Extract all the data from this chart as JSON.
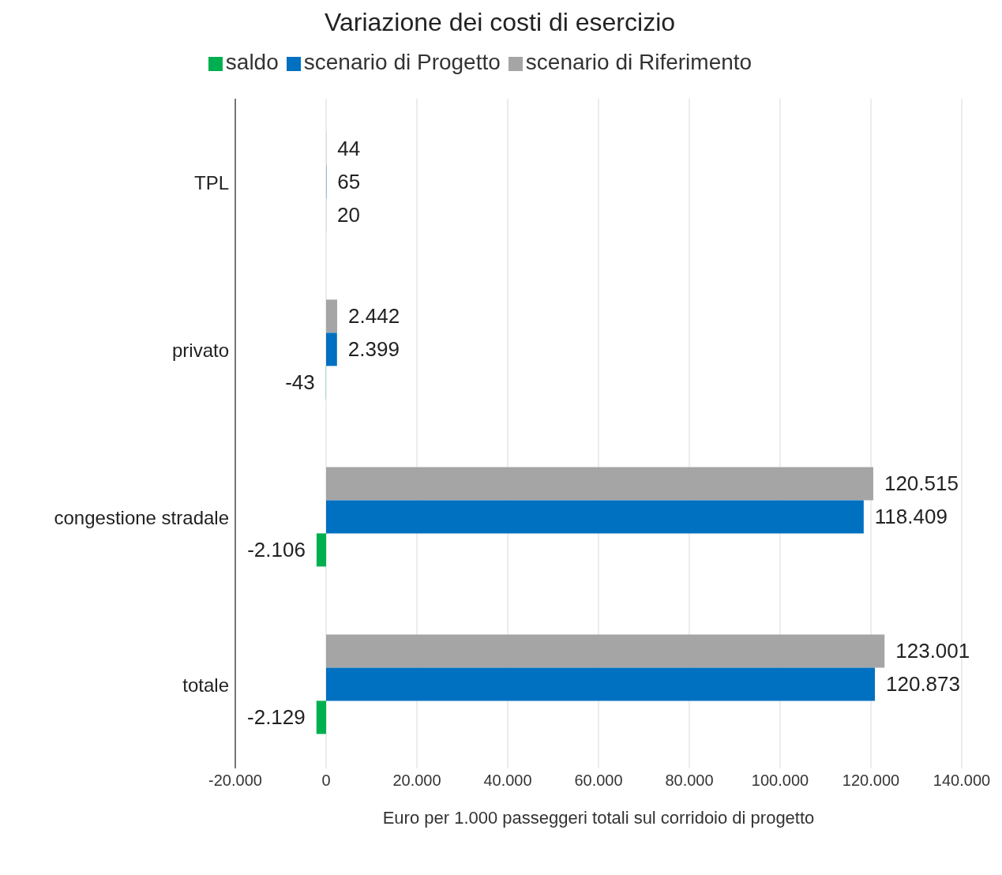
{
  "chart_data": {
    "type": "bar",
    "orientation": "horizontal",
    "title": "Variazione dei costi di esercizio",
    "xlabel": "Euro per 1.000 passeggeri totali sul corridoio di progetto",
    "categories": [
      "TPL",
      "privato",
      "congestione stradale",
      "totale"
    ],
    "series": [
      {
        "name": "scenario di Riferimento",
        "color": "#a5a5a5",
        "values": [
          44,
          2442,
          120515,
          123001
        ],
        "value_labels": [
          "44",
          "2.442",
          "120.515",
          "123.001"
        ]
      },
      {
        "name": "scenario di Progetto",
        "color": "#0070c0",
        "values": [
          65,
          2399,
          118409,
          120873
        ],
        "value_labels": [
          "65",
          "2.399",
          "118.409",
          "120.873"
        ]
      },
      {
        "name": "saldo",
        "color": "#00b050",
        "values": [
          20,
          -43,
          -2106,
          -2129
        ],
        "value_labels": [
          "20",
          "-43",
          "-2.106",
          "-2.129"
        ]
      }
    ],
    "xlim": [
      -20000,
      140000
    ],
    "xticks": [
      {
        "value": -20000,
        "label": "-20.000"
      },
      {
        "value": 0,
        "label": "0"
      },
      {
        "value": 20000,
        "label": "20.000"
      },
      {
        "value": 40000,
        "label": "40.000"
      },
      {
        "value": 60000,
        "label": "60.000"
      },
      {
        "value": 80000,
        "label": "80.000"
      },
      {
        "value": 100000,
        "label": "100.000"
      },
      {
        "value": 120000,
        "label": "120.000"
      },
      {
        "value": 140000,
        "label": "140.000"
      }
    ],
    "grid": "x",
    "legend": "top"
  }
}
